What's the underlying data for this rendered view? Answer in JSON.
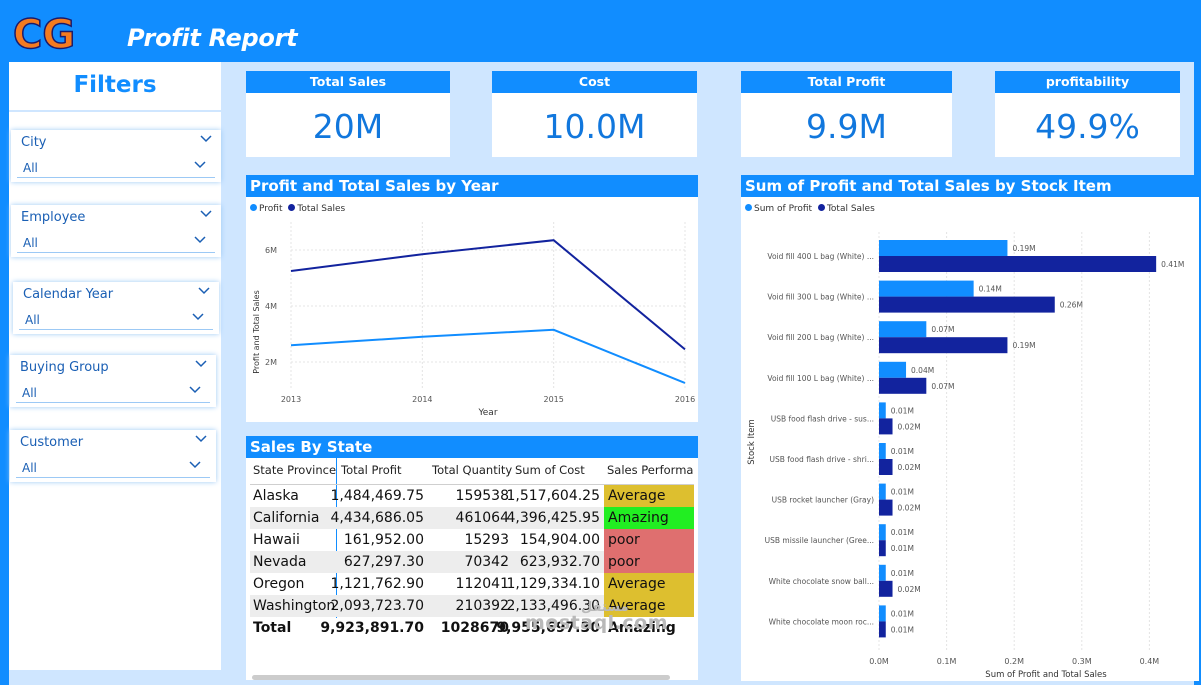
{
  "header": {
    "title": "Profit Report",
    "logo_text": "CG"
  },
  "filters": {
    "title": "Filters",
    "slicers": [
      {
        "label": "City",
        "value": "All"
      },
      {
        "label": "Employee",
        "value": "All"
      },
      {
        "label": "Calendar Year",
        "value": "All"
      },
      {
        "label": "Buying Group",
        "value": "All"
      },
      {
        "label": "Customer",
        "value": "All"
      }
    ]
  },
  "kpis": [
    {
      "label": "Total Sales",
      "value": "20M"
    },
    {
      "label": "Cost",
      "value": "10.0M"
    },
    {
      "label": "Total Profit",
      "value": "9.9M"
    },
    {
      "label": "profitability",
      "value": "49.9%"
    }
  ],
  "colors": {
    "profit": "#118DFF",
    "total_sales": "#12239E",
    "accent": "#118DFF",
    "average": "#DDBF2F",
    "amazing": "#22EE22",
    "poor": "#DF6F6F"
  },
  "line_chart": {
    "title": "Profit and Total Sales by Year",
    "chart_data": {
      "type": "line",
      "x": [
        "2013",
        "2014",
        "2015",
        "2016"
      ],
      "series": [
        {
          "name": "Profit",
          "values": [
            2.6,
            2.9,
            3.15,
            1.25
          ]
        },
        {
          "name": "Total Sales",
          "values": [
            5.25,
            5.85,
            6.35,
            2.45
          ]
        }
      ],
      "xlabel": "Year",
      "ylabel": "Profit and Total Sales",
      "yticks": [
        "2M",
        "4M",
        "6M"
      ],
      "ylim": [
        1,
        7
      ],
      "legend": "top-left"
    }
  },
  "bar_chart": {
    "title": "Sum of Profit and Total Sales by Stock Item",
    "chart_data": {
      "type": "bar",
      "orientation": "horizontal",
      "categories": [
        "Void fill 400 L bag (White) ...",
        "Void fill 300 L bag (White) ...",
        "Void fill 200 L bag (White) ...",
        "Void fill 100 L bag (White) ...",
        "USB food flash drive - sus...",
        "USB food flash drive - shri...",
        "USB rocket launcher (Gray)",
        "USB missile launcher (Gree...",
        "White chocolate snow ball...",
        "White chocolate moon roc..."
      ],
      "series": [
        {
          "name": "Sum of Profit",
          "values": [
            0.19,
            0.14,
            0.07,
            0.04,
            0.01,
            0.01,
            0.01,
            0.01,
            0.01,
            0.01
          ]
        },
        {
          "name": "Total Sales",
          "values": [
            0.41,
            0.26,
            0.19,
            0.07,
            0.02,
            0.02,
            0.02,
            0.01,
            0.02,
            0.01
          ]
        }
      ],
      "value_labels": [
        [
          "0.19M",
          "0.14M",
          "0.07M",
          "0.04M",
          "0.01M",
          "0.01M",
          "0.01M",
          "0.01M",
          "0.01M",
          "0.01M"
        ],
        [
          "0.41M",
          "0.26M",
          "0.19M",
          "0.07M",
          "0.02M",
          "0.02M",
          "0.02M",
          "0.01M",
          "0.02M",
          "0.01M"
        ]
      ],
      "xlabel": "Sum of Profit and Total Sales",
      "ylabel": "Stock Item",
      "xticks": [
        "0.0M",
        "0.1M",
        "0.2M",
        "0.3M",
        "0.4M"
      ],
      "xlim": [
        0,
        0.4
      ],
      "legend": "top-left"
    }
  },
  "table": {
    "title": "Sales By State",
    "columns": [
      "State Province",
      "Total Profit",
      "Total Quantity",
      "Sum of Cost",
      "Sales Performan"
    ],
    "rows": [
      {
        "state": "Alaska",
        "profit": "1,484,469.75",
        "qty": "159538",
        "cost": "1,517,604.25",
        "perf": "Average"
      },
      {
        "state": "California",
        "profit": "4,434,686.05",
        "qty": "461064",
        "cost": "4,396,425.95",
        "perf": "Amazing"
      },
      {
        "state": "Hawaii",
        "profit": "161,952.00",
        "qty": "15293",
        "cost": "154,904.00",
        "perf": "poor"
      },
      {
        "state": "Nevada",
        "profit": "627,297.30",
        "qty": "70342",
        "cost": "623,932.70",
        "perf": "poor"
      },
      {
        "state": "Oregon",
        "profit": "1,121,762.90",
        "qty": "112041",
        "cost": "1,129,334.10",
        "perf": "Average"
      },
      {
        "state": "Washington",
        "profit": "2,093,723.70",
        "qty": "210392",
        "cost": "2,133,496.30",
        "perf": "Average"
      }
    ],
    "total": {
      "state": "Total",
      "profit": "9,923,891.70",
      "qty": "1028670",
      "cost": "9,955,697.30",
      "perf": "Amazing"
    }
  },
  "watermark": {
    "text": "mostaql.com",
    "arabic": "مستقل"
  }
}
